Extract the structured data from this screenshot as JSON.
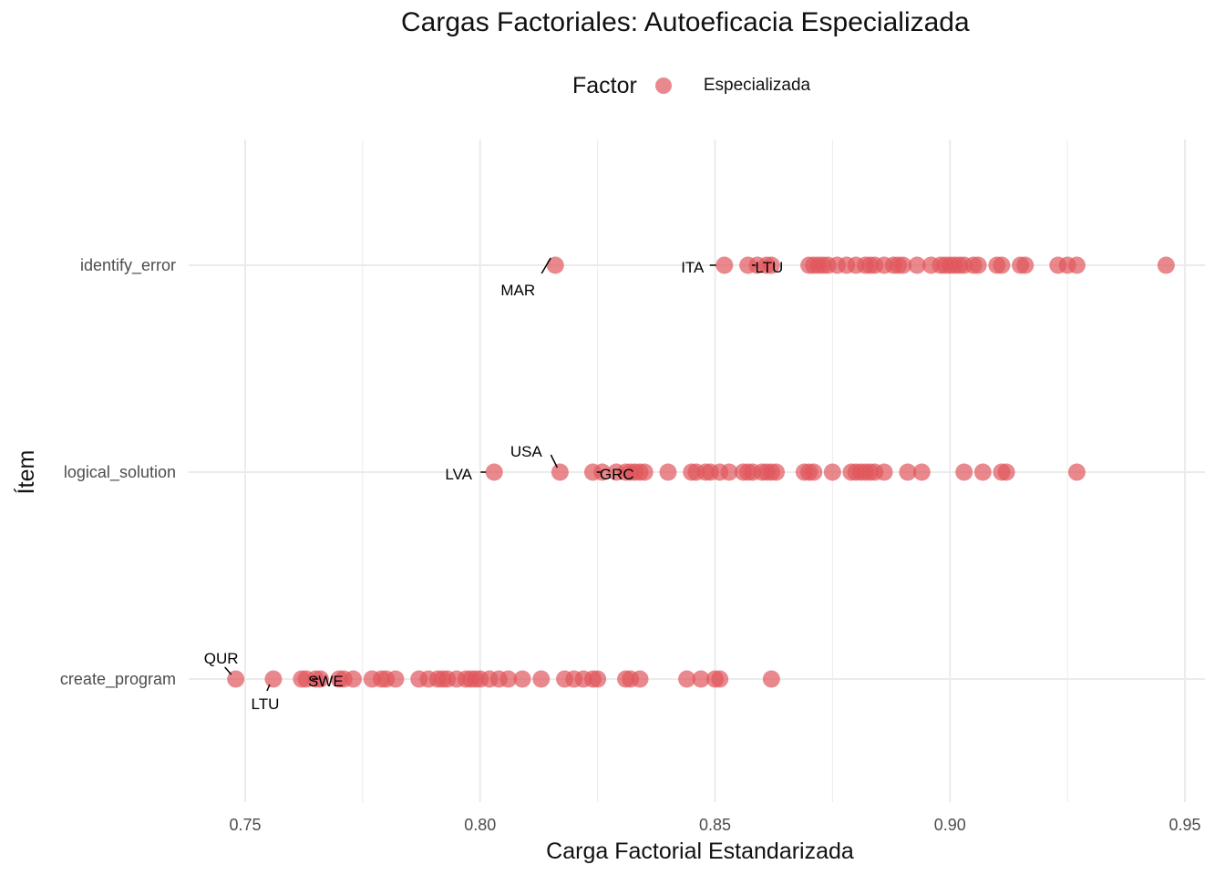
{
  "chart_data": {
    "type": "scatter",
    "title": "Cargas Factoriales: Autoeficacia Especializada",
    "xlabel": "Carga Factorial Estandarizada",
    "ylabel": "Ítem",
    "xlim": [
      0.72,
      0.958
    ],
    "xticks": [
      0.75,
      0.8,
      0.85,
      0.9,
      0.95
    ],
    "xtick_labels": [
      "0.75",
      "0.80",
      "0.85",
      "0.90",
      "0.95"
    ],
    "categories": [
      "identify_error",
      "logical_solution",
      "create_program"
    ],
    "grid": true,
    "legend": {
      "title": "Factor",
      "position": "top",
      "entries": [
        "Especializada"
      ]
    },
    "colors": {
      "point": "#e0575c",
      "grid": "#ebebeb"
    },
    "series": [
      {
        "name": "Especializada",
        "points": [
          {
            "item": "identify_error",
            "values": [
              0.816,
              0.852,
              0.857,
              0.859,
              0.861,
              0.862,
              0.87,
              0.871,
              0.872,
              0.873,
              0.874,
              0.876,
              0.878,
              0.88,
              0.882,
              0.883,
              0.884,
              0.886,
              0.888,
              0.889,
              0.89,
              0.893,
              0.896,
              0.898,
              0.899,
              0.9,
              0.901,
              0.902,
              0.903,
              0.905,
              0.906,
              0.91,
              0.911,
              0.915,
              0.916,
              0.923,
              0.925,
              0.927,
              0.946
            ]
          },
          {
            "item": "logical_solution",
            "values": [
              0.803,
              0.817,
              0.824,
              0.826,
              0.829,
              0.831,
              0.832,
              0.833,
              0.834,
              0.835,
              0.84,
              0.845,
              0.846,
              0.848,
              0.849,
              0.851,
              0.853,
              0.856,
              0.857,
              0.858,
              0.86,
              0.861,
              0.862,
              0.863,
              0.869,
              0.87,
              0.871,
              0.875,
              0.879,
              0.88,
              0.881,
              0.882,
              0.883,
              0.884,
              0.886,
              0.891,
              0.894,
              0.903,
              0.907,
              0.911,
              0.912,
              0.927
            ]
          },
          {
            "item": "create_program",
            "values": [
              0.748,
              0.756,
              0.762,
              0.763,
              0.765,
              0.766,
              0.77,
              0.771,
              0.773,
              0.777,
              0.779,
              0.78,
              0.782,
              0.787,
              0.789,
              0.791,
              0.792,
              0.793,
              0.795,
              0.797,
              0.798,
              0.799,
              0.8,
              0.802,
              0.804,
              0.806,
              0.809,
              0.813,
              0.818,
              0.82,
              0.822,
              0.824,
              0.825,
              0.831,
              0.832,
              0.834,
              0.844,
              0.847,
              0.85,
              0.851,
              0.862
            ]
          }
        ]
      }
    ],
    "annotations": [
      {
        "item": "identify_error",
        "x": 0.816,
        "label": "MAR"
      },
      {
        "item": "identify_error",
        "x": 0.852,
        "label": "ITA"
      },
      {
        "item": "identify_error",
        "x": 0.859,
        "label": "LTU"
      },
      {
        "item": "logical_solution",
        "x": 0.803,
        "label": "LVA"
      },
      {
        "item": "logical_solution",
        "x": 0.817,
        "label": "USA"
      },
      {
        "item": "logical_solution",
        "x": 0.826,
        "label": "GRC"
      },
      {
        "item": "create_program",
        "x": 0.748,
        "label": "QUR"
      },
      {
        "item": "create_program",
        "x": 0.756,
        "label": "LTU"
      },
      {
        "item": "create_program",
        "x": 0.765,
        "label": "SWE"
      }
    ]
  }
}
